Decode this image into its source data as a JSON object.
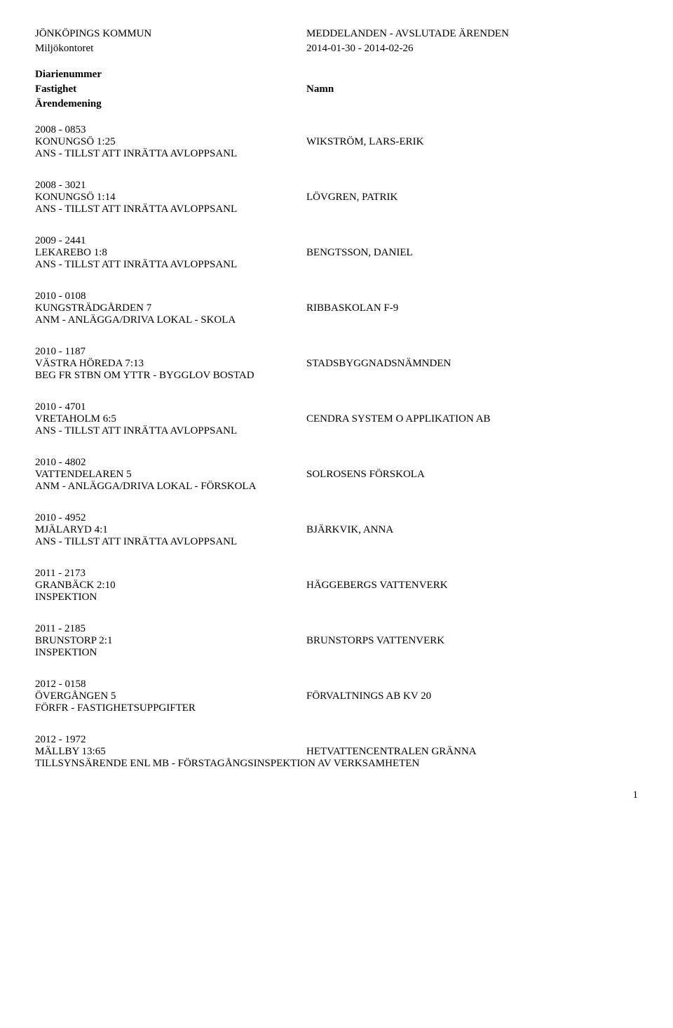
{
  "header": {
    "org": "JÖNKÖPINGS KOMMUN",
    "title": "MEDDELANDEN - AVSLUTADE ÄRENDEN",
    "dept": "Miljökontoret",
    "date_range": "2014-01-30   -  2014-02-26"
  },
  "columns": {
    "left1": "Diarienummer",
    "left2": "Fastighet",
    "left3": "Ärendemening",
    "right2": "Namn"
  },
  "entries": [
    {
      "num": "2008 -  0853",
      "fastighet": "KONUNGSÖ 1:25",
      "namn": "WIKSTRÖM, LARS-ERIK",
      "mening": "ANS - TILLST ATT INRÄTTA AVLOPPSANL"
    },
    {
      "num": "2008 -  3021",
      "fastighet": "KONUNGSÖ 1:14",
      "namn": "LÖVGREN, PATRIK",
      "mening": "ANS - TILLST ATT INRÄTTA AVLOPPSANL"
    },
    {
      "num": "2009 -  2441",
      "fastighet": "LEKAREBO 1:8",
      "namn": "BENGTSSON, DANIEL",
      "mening": "ANS - TILLST ATT INRÄTTA AVLOPPSANL"
    },
    {
      "num": "2010 -  0108",
      "fastighet": "KUNGSTRÄDGÅRDEN 7",
      "namn": "RIBBASKOLAN F-9",
      "mening": "ANM - ANLÄGGA/DRIVA LOKAL - SKOLA"
    },
    {
      "num": "2010 -  1187",
      "fastighet": "VÄSTRA HÖREDA 7:13",
      "namn": "STADSBYGGNADSNÄMNDEN",
      "mening": "BEG FR STBN OM YTTR - BYGGLOV BOSTAD"
    },
    {
      "num": "2010 -  4701",
      "fastighet": "VRETAHOLM 6:5",
      "namn": "CENDRA SYSTEM O APPLIKATION AB",
      "mening": "ANS - TILLST ATT INRÄTTA AVLOPPSANL"
    },
    {
      "num": "2010 -  4802",
      "fastighet": "VATTENDELAREN 5",
      "namn": "SOLROSENS FÖRSKOLA",
      "mening": "ANM - ANLÄGGA/DRIVA LOKAL - FÖRSKOLA"
    },
    {
      "num": "2010 -  4952",
      "fastighet": "MJÄLARYD 4:1",
      "namn": "BJÄRKVIK, ANNA",
      "mening": "ANS - TILLST ATT INRÄTTA AVLOPPSANL"
    },
    {
      "num": "2011 -  2173",
      "fastighet": "GRANBÄCK 2:10",
      "namn": "HÄGGEBERGS VATTENVERK",
      "mening": "INSPEKTION"
    },
    {
      "num": "2011 -  2185",
      "fastighet": "BRUNSTORP 2:1",
      "namn": "BRUNSTORPS VATTENVERK",
      "mening": "INSPEKTION"
    },
    {
      "num": "2012 -  0158",
      "fastighet": "ÖVERGÅNGEN 5",
      "namn": "FÖRVALTNINGS AB KV 20",
      "mening": "FÖRFR - FASTIGHETSUPPGIFTER"
    },
    {
      "num": "2012 -  1972",
      "fastighet": "MÄLLBY 13:65",
      "namn": "HETVATTENCENTRALEN GRÄNNA",
      "mening": "TILLSYNSÄRENDE ENL MB - FÖRSTAGÅNGSINSPEKTION AV VERKSAMHETEN"
    }
  ],
  "page": "1"
}
